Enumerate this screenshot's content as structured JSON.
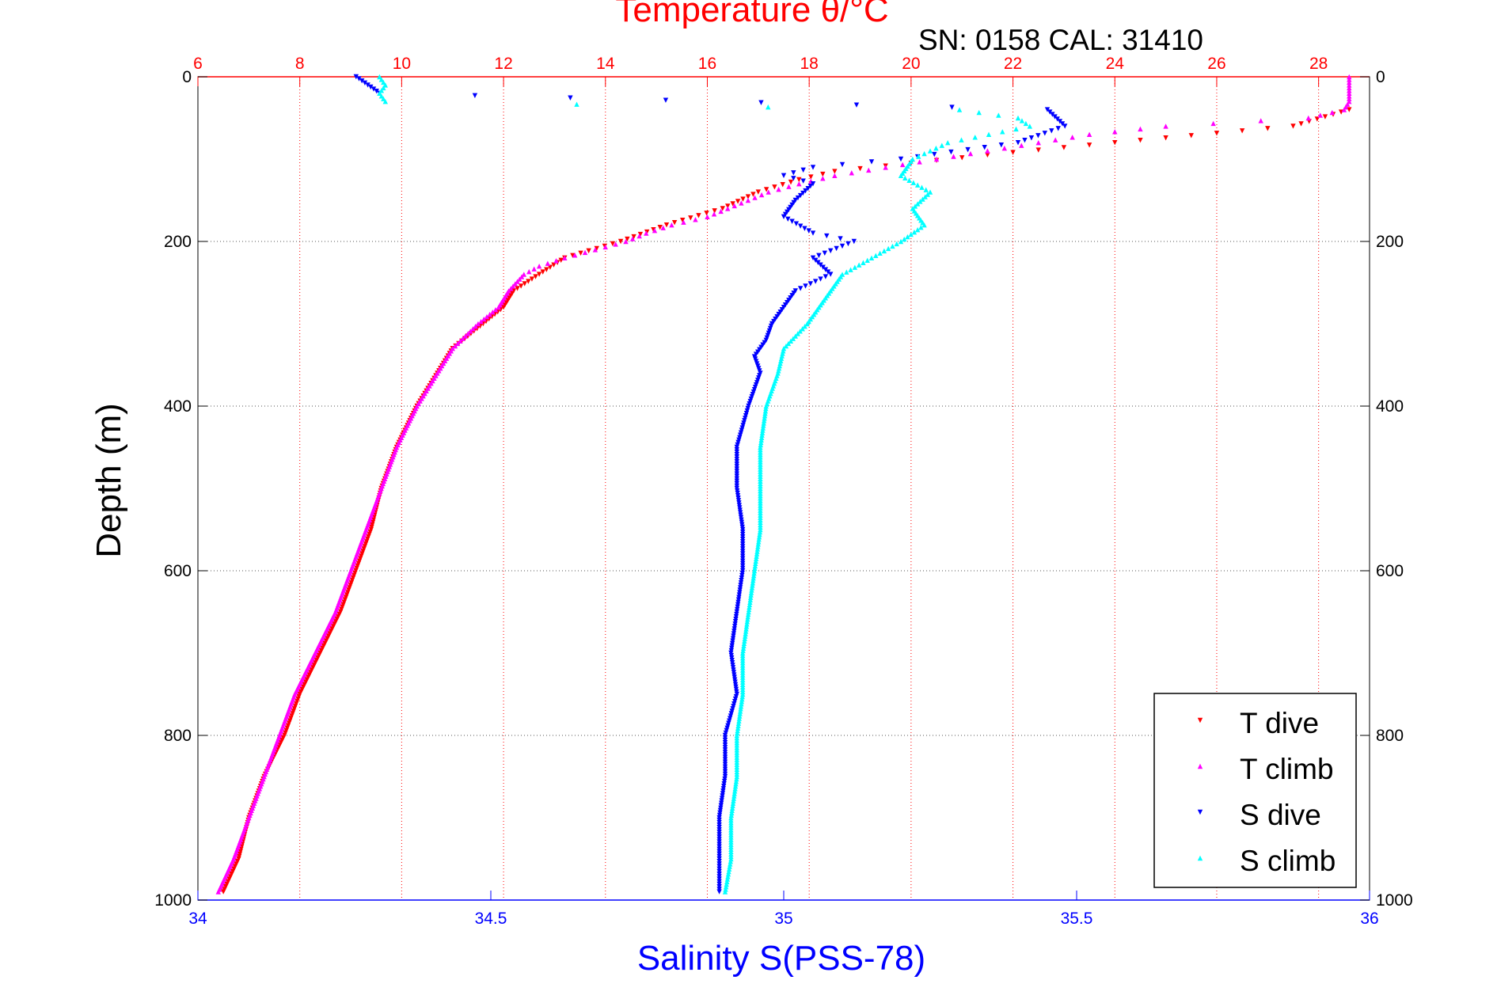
{
  "header": {
    "title": "Temperature θ/°C",
    "subtitle": "SN: 0158  CAL: 31410"
  },
  "colors": {
    "temperature_axis": "#ff0000",
    "salinity_axis": "#0000ff",
    "t_dive": "#ff0000",
    "t_climb": "#ff00ff",
    "s_dive": "#0000ff",
    "s_climb": "#00ffff",
    "grid_temperature": "#ff0000",
    "grid_depth": "#555555"
  },
  "chart_data": {
    "type": "scatter",
    "title": "Temperature θ/°C",
    "subtitle": "SN: 0158  CAL: 31410",
    "ylabel": "Depth (m)",
    "xlabel_bottom": "Salinity S(PSS-78)",
    "xlabel_top": "Temperature θ/°C",
    "ylim": [
      0,
      1000
    ],
    "y_reversed": true,
    "y_ticks": [
      0,
      200,
      400,
      600,
      800,
      1000
    ],
    "salinity_xlim": [
      34,
      36
    ],
    "salinity_ticks": [
      "34",
      "34.5",
      "35",
      "35.5",
      "36"
    ],
    "temperature_xlim": [
      6,
      29
    ],
    "temperature_ticks": [
      "6",
      "8",
      "10",
      "12",
      "14",
      "16",
      "18",
      "20",
      "22",
      "24",
      "26",
      "28"
    ],
    "grid": true,
    "legend": {
      "position": "bottom-right",
      "entries": [
        "T dive",
        "T climb",
        "S dive",
        "S climb"
      ]
    },
    "series": [
      {
        "name": "T dive",
        "axis": "temperature",
        "marker": "triangle-down",
        "depth": [
          40,
          60,
          80,
          95,
          105,
          115,
          125,
          140,
          160,
          180,
          200,
          220,
          240,
          260,
          280,
          300,
          330,
          360,
          400,
          450,
          500,
          550,
          600,
          650,
          700,
          750,
          800,
          850,
          900,
          950,
          990
        ],
        "values": [
          28.6,
          27.5,
          24.0,
          21.5,
          20.0,
          18.5,
          17.8,
          17.0,
          16.3,
          15.2,
          14.3,
          13.2,
          12.7,
          12.2,
          12.0,
          11.6,
          11.0,
          10.7,
          10.3,
          9.9,
          9.6,
          9.4,
          9.1,
          8.8,
          8.4,
          8.0,
          7.7,
          7.3,
          7.0,
          6.8,
          6.5
        ]
      },
      {
        "name": "T climb",
        "axis": "temperature",
        "marker": "triangle-up",
        "depth": [
          0,
          10,
          20,
          30,
          40,
          50,
          60,
          70,
          80,
          90,
          100,
          110,
          120,
          130,
          140,
          150,
          160,
          170,
          180,
          190,
          200,
          210,
          220,
          230,
          240,
          260,
          280,
          300,
          330,
          360,
          400,
          450,
          500,
          550,
          600,
          650,
          700,
          750,
          800,
          850,
          900,
          950,
          990
        ],
        "values": [
          28.6,
          28.6,
          28.6,
          28.6,
          28.5,
          27.8,
          25.0,
          23.5,
          22.5,
          21.5,
          20.5,
          19.5,
          18.5,
          17.8,
          17.2,
          16.8,
          16.4,
          16.0,
          15.3,
          14.8,
          14.4,
          13.8,
          13.2,
          12.7,
          12.4,
          12.1,
          11.9,
          11.5,
          11.0,
          10.7,
          10.3,
          9.9,
          9.6,
          9.3,
          9.0,
          8.7,
          8.3,
          7.9,
          7.6,
          7.3,
          7.0,
          6.7,
          6.4
        ]
      },
      {
        "name": "S dive",
        "axis": "salinity",
        "marker": "triangle-down",
        "depth": [
          0,
          5,
          10,
          15,
          20,
          40,
          60,
          80,
          100,
          110,
          120,
          130,
          150,
          170,
          190,
          200,
          220,
          240,
          260,
          280,
          300,
          320,
          340,
          360,
          380,
          400,
          450,
          500,
          550,
          600,
          650,
          700,
          750,
          800,
          850,
          900,
          950,
          990
        ],
        "values": [
          34.27,
          34.28,
          34.29,
          34.3,
          34.31,
          35.45,
          35.48,
          35.4,
          35.2,
          35.05,
          35.0,
          35.05,
          35.02,
          35.0,
          35.05,
          35.12,
          35.05,
          35.08,
          35.02,
          35.0,
          34.98,
          34.97,
          34.95,
          34.96,
          34.95,
          34.94,
          34.92,
          34.92,
          34.93,
          34.93,
          34.92,
          34.91,
          34.92,
          34.9,
          34.9,
          34.89,
          34.89,
          34.89
        ]
      },
      {
        "name": "S climb",
        "axis": "salinity",
        "marker": "triangle-up",
        "depth": [
          0,
          10,
          20,
          30,
          40,
          50,
          60,
          70,
          80,
          90,
          100,
          120,
          140,
          160,
          180,
          200,
          220,
          240,
          260,
          280,
          300,
          330,
          360,
          400,
          450,
          500,
          550,
          600,
          650,
          700,
          750,
          800,
          850,
          900,
          950,
          990
        ],
        "values": [
          34.31,
          34.32,
          34.31,
          34.32,
          35.3,
          35.4,
          35.42,
          35.35,
          35.28,
          35.25,
          35.22,
          35.2,
          35.25,
          35.22,
          35.24,
          35.2,
          35.15,
          35.1,
          35.08,
          35.06,
          35.04,
          35.0,
          34.99,
          34.97,
          34.96,
          34.96,
          34.96,
          34.95,
          34.94,
          34.93,
          34.93,
          34.92,
          34.92,
          34.91,
          34.91,
          34.9
        ]
      }
    ]
  }
}
